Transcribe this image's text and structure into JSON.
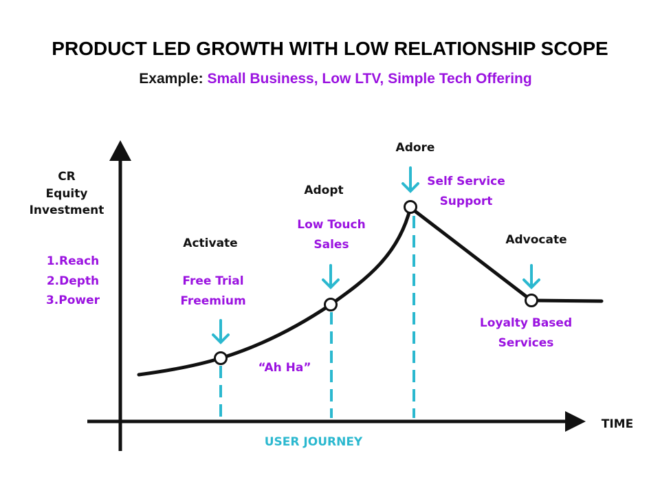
{
  "title": "PRODUCT LED GROWTH WITH LOW RELATIONSHIP SCOPE",
  "subtitle": {
    "prefix": "Example:",
    "highlight": "Small Business, Low LTV, Simple Tech Offering"
  },
  "axes": {
    "y_label": [
      "CR",
      "Equity",
      "Investment"
    ],
    "y_items": [
      "1.Reach",
      "2.Depth",
      "3.Power"
    ],
    "x_label": "TIME",
    "x_caption": "USER JOURNEY"
  },
  "stages": [
    {
      "name": "Activate",
      "offering": [
        "Free Trial",
        "Freemium"
      ]
    },
    {
      "name": "Adopt",
      "offering": [
        "Low Touch",
        "Sales"
      ]
    },
    {
      "name": "Adore",
      "offering": [
        "Self Service",
        "Support"
      ]
    },
    {
      "name": "Advocate",
      "offering": [
        "Loyalty Based",
        "Services"
      ]
    }
  ],
  "annotation": "“Ah Ha”",
  "colors": {
    "accent_purple": "#9a12e0",
    "accent_teal": "#2bb8cf",
    "line": "#111111"
  }
}
